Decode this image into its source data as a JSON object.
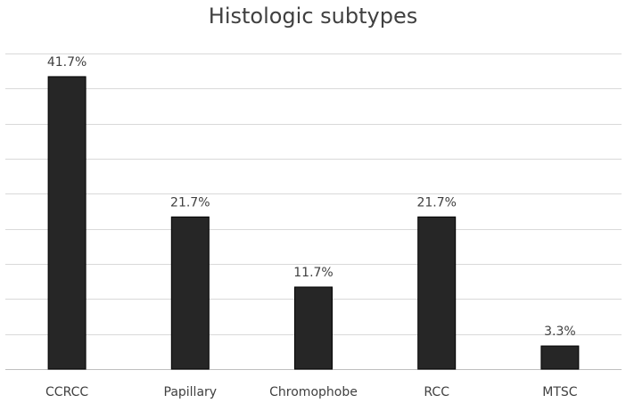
{
  "chart_data": {
    "type": "bar",
    "title": "Histologic subtypes",
    "categories": [
      "CCRCC",
      "Papillary",
      "Chromophobe",
      "RCC",
      "MTSC"
    ],
    "values": [
      41.7,
      21.7,
      11.7,
      21.7,
      3.3
    ],
    "data_labels": [
      "41.7%",
      "21.7%",
      "11.7%",
      "21.7%",
      "3.3%"
    ],
    "xlabel": "",
    "ylabel": "",
    "ylim": [
      0,
      45
    ],
    "grid": true,
    "legend": "none",
    "bar_color": "#262626"
  }
}
